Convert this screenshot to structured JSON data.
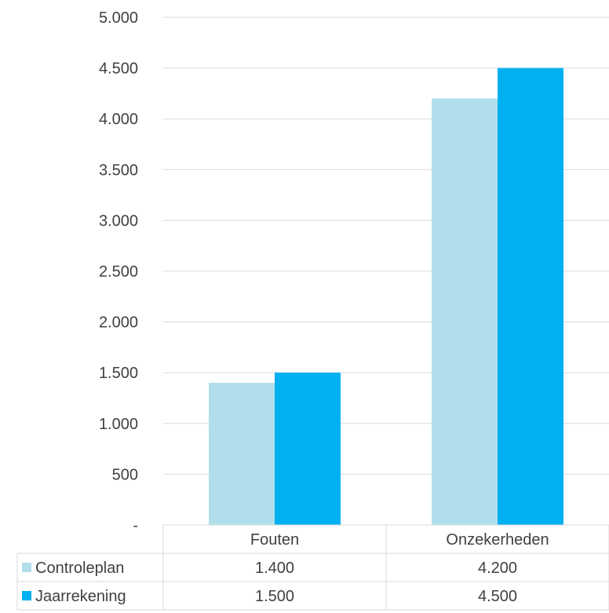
{
  "chart_data": {
    "type": "bar",
    "title": "",
    "xlabel": "",
    "ylabel": "",
    "categories": [
      "Fouten",
      "Onzekerheden"
    ],
    "series": [
      {
        "name": "Controleplan",
        "values": [
          1400,
          4200
        ],
        "value_labels": [
          "1.400",
          "4.200"
        ],
        "color": "#B0DFEB"
      },
      {
        "name": "Jaarrekening",
        "values": [
          1500,
          4500
        ],
        "value_labels": [
          "1.500",
          "4.500"
        ],
        "color": "#00B0F0"
      }
    ],
    "ylim": [
      0,
      5000
    ],
    "yticks": [
      0,
      500,
      1000,
      1500,
      2000,
      2500,
      3000,
      3500,
      4000,
      4500,
      5000
    ],
    "ytick_labels": [
      "-",
      "500",
      "1.000",
      "1.500",
      "2.000",
      "2.500",
      "3.000",
      "3.500",
      "4.000",
      "4.500",
      "5.000"
    ],
    "grid": true,
    "legend": "data-table-left",
    "colors": {
      "gridline": "#D9D9D9",
      "text": "#404040"
    }
  }
}
